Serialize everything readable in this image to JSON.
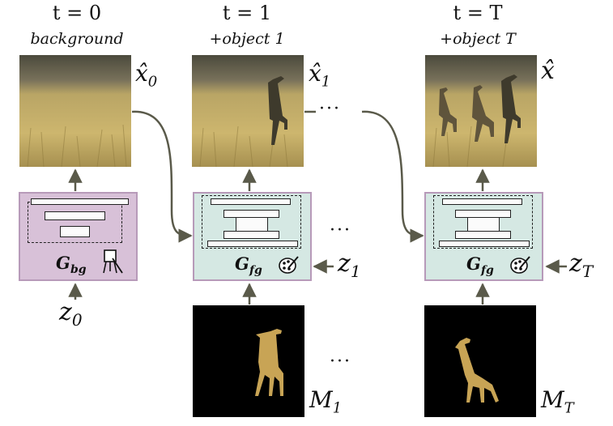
{
  "columns": [
    {
      "time": "t = 0",
      "step": "background",
      "output": "x̂",
      "output_sub": "0"
    },
    {
      "time": "t = 1",
      "step": "+object 1",
      "output": "x̂",
      "output_sub": "1"
    },
    {
      "time": "t = T",
      "step": "+object T",
      "output": "x̂",
      "output_sub": ""
    }
  ],
  "generators": {
    "bg": {
      "label": "G",
      "sub": "bg",
      "icon": "easel-icon"
    },
    "fg": {
      "label": "G",
      "sub": "fg",
      "icon": "palette-icon"
    }
  },
  "inputs": {
    "z0": {
      "var": "z",
      "sub": "0"
    },
    "z1": {
      "var": "z",
      "sub": "1"
    },
    "zT": {
      "var": "z",
      "sub": "T"
    }
  },
  "masks": [
    {
      "var": "M",
      "sub": "1"
    },
    {
      "var": "M",
      "sub": "T"
    }
  ],
  "ellipsis": "···",
  "colors": {
    "bg_generator": "#d8c1d8",
    "fg_generator": "#d5e8e3",
    "generator_border": "#b79ab9",
    "arrow": "#5a5a4a",
    "giraffe": "#c8a455"
  }
}
